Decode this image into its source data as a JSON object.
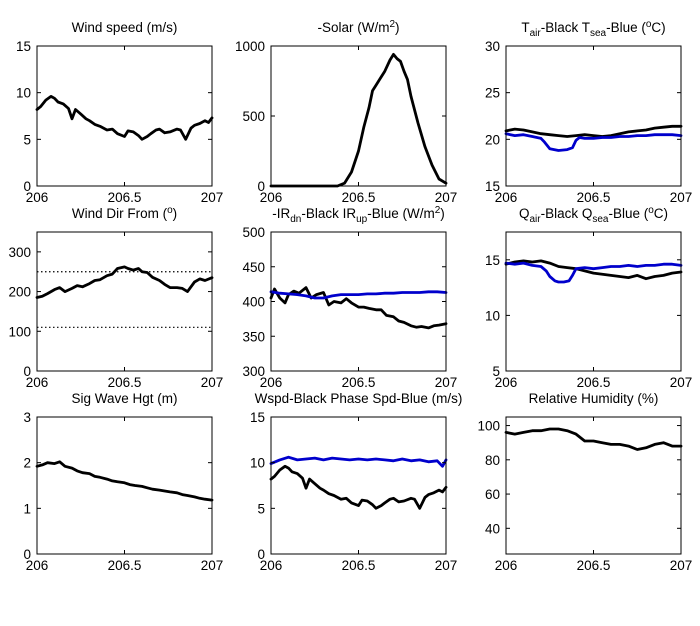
{
  "chart_data": [
    {
      "type": "line",
      "title": "Wind speed (m/s)",
      "title_parts": [
        {
          "t": "Wind speed (m/s)"
        }
      ],
      "xlim": [
        206,
        207
      ],
      "ylim": [
        0,
        15
      ],
      "xticks": [
        206,
        206.5,
        207
      ],
      "yticks": [
        0,
        5,
        10,
        15
      ],
      "series": [
        {
          "color": "#000000",
          "x": [
            206.0,
            206.02,
            206.05,
            206.08,
            206.1,
            206.12,
            206.15,
            206.18,
            206.2,
            206.22,
            206.25,
            206.28,
            206.3,
            206.33,
            206.36,
            206.4,
            206.43,
            206.46,
            206.5,
            206.52,
            206.55,
            206.58,
            206.6,
            206.63,
            206.65,
            206.68,
            206.7,
            206.73,
            206.76,
            206.8,
            206.82,
            206.85,
            206.88,
            206.9,
            206.93,
            206.96,
            206.98,
            207.0
          ],
          "y": [
            8.2,
            8.5,
            9.2,
            9.6,
            9.4,
            9.0,
            8.8,
            8.3,
            7.2,
            8.2,
            7.7,
            7.2,
            7.0,
            6.6,
            6.4,
            6.0,
            6.1,
            5.6,
            5.3,
            5.9,
            5.8,
            5.4,
            5.0,
            5.3,
            5.6,
            6.0,
            6.1,
            5.7,
            5.8,
            6.1,
            6.0,
            5.0,
            6.2,
            6.5,
            6.7,
            7.0,
            6.8,
            7.3
          ]
        }
      ]
    },
    {
      "type": "line",
      "title": "-Solar (W/m2)",
      "title_parts": [
        {
          "t": "-Solar (W/m"
        },
        {
          "t": "2",
          "s": "sup"
        },
        {
          "t": ")"
        }
      ],
      "xlim": [
        206,
        207
      ],
      "ylim": [
        0,
        1000
      ],
      "xticks": [
        206,
        206.5,
        207
      ],
      "yticks": [
        0,
        500,
        1000
      ],
      "series": [
        {
          "color": "#000000",
          "x": [
            206.0,
            206.1,
            206.2,
            206.3,
            206.38,
            206.42,
            206.46,
            206.5,
            206.53,
            206.56,
            206.58,
            206.6,
            206.62,
            206.65,
            206.68,
            206.7,
            206.72,
            206.74,
            206.76,
            206.78,
            206.8,
            206.84,
            206.88,
            206.92,
            206.96,
            207.0
          ],
          "y": [
            0,
            0,
            0,
            0,
            0,
            20,
            100,
            250,
            420,
            560,
            680,
            720,
            760,
            820,
            900,
            940,
            910,
            890,
            820,
            760,
            640,
            450,
            280,
            150,
            50,
            20
          ]
        }
      ]
    },
    {
      "type": "line",
      "title": "Tair-Black Tsea-Blue (oC)",
      "title_parts": [
        {
          "t": "T"
        },
        {
          "t": "air",
          "s": "sub"
        },
        {
          "t": "-Black  T"
        },
        {
          "t": "sea",
          "s": "sub"
        },
        {
          "t": "-Blue ("
        },
        {
          "t": "o",
          "s": "sup"
        },
        {
          "t": "C)"
        }
      ],
      "xlim": [
        206,
        207
      ],
      "ylim": [
        15,
        30
      ],
      "xticks": [
        206,
        206.5,
        207
      ],
      "yticks": [
        15,
        20,
        25,
        30
      ],
      "series": [
        {
          "color": "#000000",
          "x": [
            206.0,
            206.05,
            206.1,
            206.15,
            206.2,
            206.25,
            206.3,
            206.35,
            206.4,
            206.45,
            206.5,
            206.55,
            206.6,
            206.65,
            206.7,
            206.75,
            206.8,
            206.85,
            206.9,
            206.95,
            207.0
          ],
          "y": [
            20.9,
            21.1,
            21.0,
            20.8,
            20.6,
            20.5,
            20.4,
            20.3,
            20.4,
            20.5,
            20.4,
            20.3,
            20.4,
            20.6,
            20.8,
            20.9,
            21.0,
            21.2,
            21.3,
            21.4,
            21.4
          ]
        },
        {
          "color": "#0000cc",
          "x": [
            206.0,
            206.05,
            206.1,
            206.15,
            206.2,
            206.22,
            206.25,
            206.3,
            206.35,
            206.38,
            206.4,
            206.42,
            206.45,
            206.5,
            206.55,
            206.6,
            206.65,
            206.7,
            206.75,
            206.8,
            206.85,
            206.9,
            206.95,
            207.0
          ],
          "y": [
            20.6,
            20.4,
            20.5,
            20.3,
            20.1,
            19.7,
            19.0,
            18.8,
            18.9,
            19.1,
            19.9,
            20.2,
            20.1,
            20.1,
            20.2,
            20.2,
            20.3,
            20.3,
            20.4,
            20.4,
            20.5,
            20.5,
            20.5,
            20.4
          ]
        }
      ]
    },
    {
      "type": "line",
      "title": "Wind Dir From (o)",
      "title_parts": [
        {
          "t": "Wind Dir From ("
        },
        {
          "t": "o",
          "s": "sup"
        },
        {
          "t": ")"
        }
      ],
      "xlim": [
        206,
        207
      ],
      "ylim": [
        0,
        350
      ],
      "xticks": [
        206,
        206.5,
        207
      ],
      "yticks": [
        0,
        100,
        200,
        300
      ],
      "reference_lines": [
        110,
        250
      ],
      "series": [
        {
          "color": "#000000",
          "x": [
            206.0,
            206.03,
            206.06,
            206.1,
            206.13,
            206.16,
            206.2,
            206.23,
            206.26,
            206.3,
            206.33,
            206.36,
            206.4,
            206.43,
            206.46,
            206.5,
            206.52,
            206.55,
            206.58,
            206.6,
            206.63,
            206.66,
            206.7,
            206.73,
            206.76,
            206.8,
            206.83,
            206.86,
            206.9,
            206.93,
            206.96,
            207.0
          ],
          "y": [
            185,
            188,
            195,
            205,
            210,
            200,
            208,
            215,
            212,
            220,
            228,
            230,
            240,
            244,
            258,
            262,
            258,
            254,
            258,
            250,
            248,
            236,
            228,
            218,
            210,
            210,
            208,
            200,
            224,
            232,
            228,
            235
          ]
        }
      ]
    },
    {
      "type": "line",
      "title": "-IRdn-Black IRup-Blue (W/m2)",
      "title_parts": [
        {
          "t": "-IR"
        },
        {
          "t": "dn",
          "s": "sub"
        },
        {
          "t": "-Black  IR"
        },
        {
          "t": "up",
          "s": "sub"
        },
        {
          "t": "-Blue (W/m"
        },
        {
          "t": "2",
          "s": "sup"
        },
        {
          "t": ")"
        }
      ],
      "xlim": [
        206,
        207
      ],
      "ylim": [
        300,
        500
      ],
      "xticks": [
        206,
        206.5,
        207
      ],
      "yticks": [
        300,
        350,
        400,
        450,
        500
      ],
      "series": [
        {
          "color": "#000000",
          "x": [
            206.0,
            206.02,
            206.05,
            206.08,
            206.1,
            206.13,
            206.16,
            206.2,
            206.23,
            206.26,
            206.3,
            206.33,
            206.36,
            206.4,
            206.43,
            206.46,
            206.5,
            206.53,
            206.56,
            206.6,
            206.63,
            206.66,
            206.7,
            206.73,
            206.76,
            206.8,
            206.83,
            206.86,
            206.9,
            206.93,
            206.96,
            207.0
          ],
          "y": [
            405,
            418,
            405,
            398,
            410,
            415,
            412,
            420,
            405,
            410,
            413,
            395,
            400,
            398,
            404,
            398,
            392,
            392,
            390,
            388,
            388,
            380,
            378,
            372,
            370,
            365,
            363,
            364,
            362,
            365,
            366,
            368
          ]
        },
        {
          "color": "#0000cc",
          "x": [
            206.0,
            206.05,
            206.1,
            206.15,
            206.2,
            206.25,
            206.3,
            206.35,
            206.4,
            206.45,
            206.5,
            206.55,
            206.6,
            206.65,
            206.7,
            206.75,
            206.8,
            206.85,
            206.9,
            206.95,
            207.0
          ],
          "y": [
            414,
            412,
            411,
            410,
            408,
            405,
            405,
            408,
            410,
            410,
            410,
            411,
            411,
            412,
            412,
            413,
            413,
            413,
            414,
            414,
            413
          ]
        }
      ]
    },
    {
      "type": "line",
      "title": "Qair-Black Qsea-Blue (oC)",
      "title_parts": [
        {
          "t": "Q"
        },
        {
          "t": "air",
          "s": "sub"
        },
        {
          "t": "-Black  Q"
        },
        {
          "t": "sea",
          "s": "sub"
        },
        {
          "t": "-Blue ("
        },
        {
          "t": "o",
          "s": "sup"
        },
        {
          "t": "C)"
        }
      ],
      "xlim": [
        206,
        207
      ],
      "ylim": [
        5,
        17.5
      ],
      "xticks": [
        206,
        206.5,
        207
      ],
      "yticks": [
        5,
        10,
        15
      ],
      "series": [
        {
          "color": "#000000",
          "x": [
            206.0,
            206.05,
            206.1,
            206.15,
            206.2,
            206.25,
            206.3,
            206.35,
            206.4,
            206.45,
            206.5,
            206.55,
            206.6,
            206.65,
            206.7,
            206.75,
            206.8,
            206.85,
            206.9,
            206.95,
            207.0
          ],
          "y": [
            14.6,
            14.8,
            14.9,
            14.8,
            14.9,
            14.7,
            14.4,
            14.3,
            14.2,
            14.0,
            13.8,
            13.7,
            13.6,
            13.5,
            13.4,
            13.6,
            13.3,
            13.5,
            13.6,
            13.8,
            13.9
          ]
        },
        {
          "color": "#0000cc",
          "x": [
            206.0,
            206.05,
            206.1,
            206.15,
            206.2,
            206.23,
            206.25,
            206.28,
            206.3,
            206.33,
            206.36,
            206.38,
            206.4,
            206.45,
            206.5,
            206.55,
            206.6,
            206.65,
            206.7,
            206.75,
            206.8,
            206.85,
            206.9,
            206.95,
            207.0
          ],
          "y": [
            14.7,
            14.6,
            14.7,
            14.5,
            14.4,
            14.0,
            13.5,
            13.1,
            13.0,
            13.0,
            13.1,
            13.6,
            14.2,
            14.3,
            14.2,
            14.3,
            14.4,
            14.4,
            14.5,
            14.4,
            14.5,
            14.5,
            14.6,
            14.6,
            14.5
          ]
        }
      ]
    },
    {
      "type": "line",
      "title": "Sig Wave Hgt (m)",
      "title_parts": [
        {
          "t": "Sig Wave Hgt (m)"
        }
      ],
      "xlim": [
        206,
        207
      ],
      "ylim": [
        0,
        3
      ],
      "xticks": [
        206,
        206.5,
        207
      ],
      "yticks": [
        0,
        1,
        2,
        3
      ],
      "series": [
        {
          "color": "#000000",
          "x": [
            206.0,
            206.03,
            206.06,
            206.1,
            206.13,
            206.16,
            206.2,
            206.23,
            206.26,
            206.3,
            206.33,
            206.36,
            206.4,
            206.43,
            206.46,
            206.5,
            206.53,
            206.56,
            206.6,
            206.63,
            206.66,
            206.7,
            206.73,
            206.76,
            206.8,
            206.83,
            206.86,
            206.9,
            206.93,
            206.96,
            207.0
          ],
          "y": [
            1.92,
            1.95,
            2.0,
            1.98,
            2.02,
            1.92,
            1.88,
            1.82,
            1.78,
            1.76,
            1.7,
            1.68,
            1.64,
            1.6,
            1.58,
            1.56,
            1.52,
            1.5,
            1.48,
            1.45,
            1.42,
            1.4,
            1.38,
            1.36,
            1.34,
            1.3,
            1.28,
            1.25,
            1.22,
            1.2,
            1.18
          ]
        }
      ]
    },
    {
      "type": "line",
      "title": "Wspd-Black Phase Spd-Blue (m/s)",
      "title_parts": [
        {
          "t": "Wspd-Black  Phase Spd-Blue (m/s)"
        }
      ],
      "xlim": [
        206,
        207
      ],
      "ylim": [
        0,
        15
      ],
      "xticks": [
        206,
        206.5,
        207
      ],
      "yticks": [
        0,
        5,
        10,
        15
      ],
      "series": [
        {
          "color": "#000000",
          "x": [
            206.0,
            206.02,
            206.05,
            206.08,
            206.1,
            206.12,
            206.15,
            206.18,
            206.2,
            206.22,
            206.25,
            206.28,
            206.3,
            206.33,
            206.36,
            206.4,
            206.43,
            206.46,
            206.5,
            206.52,
            206.55,
            206.58,
            206.6,
            206.63,
            206.65,
            206.68,
            206.7,
            206.73,
            206.76,
            206.8,
            206.82,
            206.85,
            206.88,
            206.9,
            206.93,
            206.96,
            206.98,
            207.0
          ],
          "y": [
            8.2,
            8.5,
            9.2,
            9.6,
            9.4,
            9.0,
            8.8,
            8.3,
            7.2,
            8.2,
            7.7,
            7.2,
            7.0,
            6.6,
            6.4,
            6.0,
            6.1,
            5.6,
            5.3,
            5.9,
            5.8,
            5.4,
            5.0,
            5.3,
            5.6,
            6.0,
            6.1,
            5.7,
            5.8,
            6.1,
            6.0,
            5.0,
            6.2,
            6.5,
            6.7,
            7.0,
            6.8,
            7.3
          ]
        },
        {
          "color": "#0000cc",
          "x": [
            206.0,
            206.05,
            206.1,
            206.15,
            206.2,
            206.25,
            206.3,
            206.35,
            206.4,
            206.45,
            206.5,
            206.55,
            206.6,
            206.65,
            206.7,
            206.75,
            206.8,
            206.85,
            206.9,
            206.95,
            206.98,
            207.0
          ],
          "y": [
            9.9,
            10.3,
            10.6,
            10.3,
            10.4,
            10.5,
            10.3,
            10.5,
            10.4,
            10.3,
            10.4,
            10.3,
            10.4,
            10.3,
            10.2,
            10.4,
            10.2,
            10.3,
            10.1,
            10.2,
            9.6,
            10.3
          ]
        }
      ]
    },
    {
      "type": "line",
      "title": "Relative Humidity (%)",
      "title_parts": [
        {
          "t": "Relative Humidity (%)"
        }
      ],
      "xlim": [
        206,
        207
      ],
      "ylim": [
        25,
        105
      ],
      "xticks": [
        206,
        206.5,
        207
      ],
      "yticks": [
        40,
        60,
        80,
        100
      ],
      "series": [
        {
          "color": "#000000",
          "x": [
            206.0,
            206.05,
            206.1,
            206.15,
            206.2,
            206.25,
            206.3,
            206.35,
            206.4,
            206.45,
            206.5,
            206.55,
            206.6,
            206.65,
            206.7,
            206.75,
            206.8,
            206.85,
            206.9,
            206.95,
            207.0
          ],
          "y": [
            96,
            95,
            96,
            97,
            97,
            98,
            98,
            97,
            95,
            91,
            91,
            90,
            89,
            89,
            88,
            86,
            87,
            89,
            90,
            88,
            88
          ]
        }
      ]
    }
  ]
}
